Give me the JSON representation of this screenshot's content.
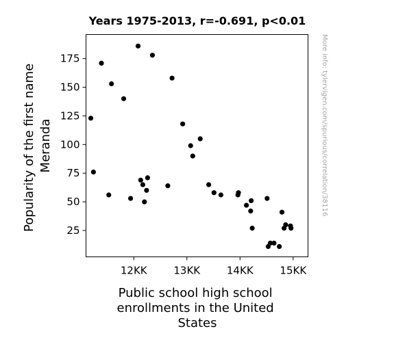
{
  "chart_data": {
    "type": "scatter",
    "title": "Years 1975-2013, r=-0.691, p<0.01",
    "xlabel_lines": [
      "Public school high school",
      "enrollments in the United",
      "States"
    ],
    "ylabel_lines": [
      "Popularity of the first name",
      "Meranda"
    ],
    "side_note": "More info: tylervigen.com/spurious/correlation/38116",
    "xlim": [
      11100,
      15280
    ],
    "ylim": [
      2,
      196
    ],
    "x_ticks": [
      {
        "value": 12000,
        "label": "12KK"
      },
      {
        "value": 13000,
        "label": "13KK"
      },
      {
        "value": 14000,
        "label": "14KK"
      },
      {
        "value": 15000,
        "label": "15KK"
      }
    ],
    "y_ticks": [
      {
        "value": 25,
        "label": "25"
      },
      {
        "value": 50,
        "label": "50"
      },
      {
        "value": 75,
        "label": "75"
      },
      {
        "value": 100,
        "label": "100"
      },
      {
        "value": 125,
        "label": "125"
      },
      {
        "value": 150,
        "label": "150"
      },
      {
        "value": 175,
        "label": "175"
      }
    ],
    "grid": false,
    "marker_color": "#000000",
    "points": [
      {
        "x": 11190,
        "y": 123
      },
      {
        "x": 11240,
        "y": 76
      },
      {
        "x": 11390,
        "y": 171
      },
      {
        "x": 11530,
        "y": 56
      },
      {
        "x": 11580,
        "y": 153
      },
      {
        "x": 11810,
        "y": 140
      },
      {
        "x": 11940,
        "y": 53
      },
      {
        "x": 12080,
        "y": 186
      },
      {
        "x": 12130,
        "y": 69
      },
      {
        "x": 12170,
        "y": 65
      },
      {
        "x": 12200,
        "y": 50
      },
      {
        "x": 12240,
        "y": 60
      },
      {
        "x": 12260,
        "y": 71
      },
      {
        "x": 12350,
        "y": 178
      },
      {
        "x": 12640,
        "y": 64
      },
      {
        "x": 12720,
        "y": 158
      },
      {
        "x": 12920,
        "y": 118
      },
      {
        "x": 13070,
        "y": 99
      },
      {
        "x": 13110,
        "y": 90
      },
      {
        "x": 13250,
        "y": 105
      },
      {
        "x": 13410,
        "y": 65
      },
      {
        "x": 13510,
        "y": 58
      },
      {
        "x": 13640,
        "y": 56
      },
      {
        "x": 13960,
        "y": 56
      },
      {
        "x": 13970,
        "y": 58
      },
      {
        "x": 14120,
        "y": 47
      },
      {
        "x": 14200,
        "y": 42
      },
      {
        "x": 14210,
        "y": 51
      },
      {
        "x": 14230,
        "y": 27
      },
      {
        "x": 14510,
        "y": 53
      },
      {
        "x": 14530,
        "y": 11
      },
      {
        "x": 14570,
        "y": 14
      },
      {
        "x": 14640,
        "y": 14
      },
      {
        "x": 14740,
        "y": 11
      },
      {
        "x": 14790,
        "y": 41
      },
      {
        "x": 14830,
        "y": 27
      },
      {
        "x": 14860,
        "y": 30
      },
      {
        "x": 14950,
        "y": 29
      },
      {
        "x": 14960,
        "y": 27
      }
    ]
  }
}
